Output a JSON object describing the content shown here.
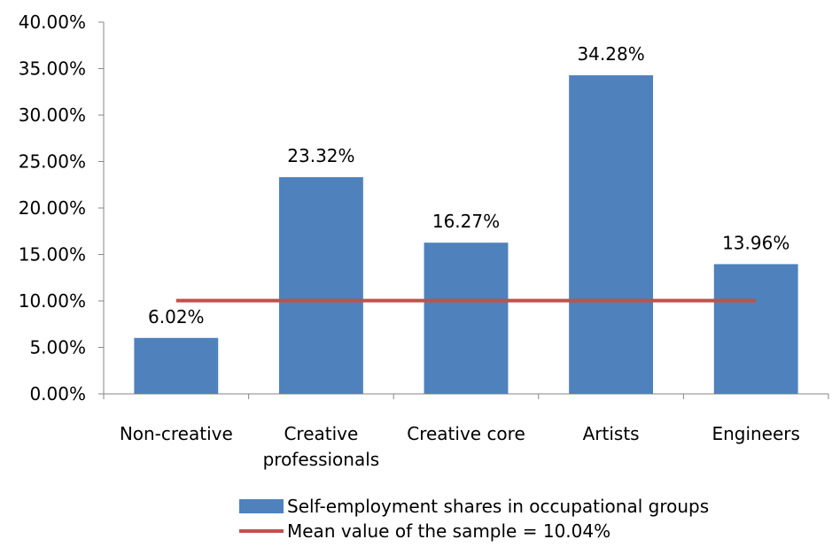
{
  "chart_data": {
    "type": "bar",
    "categories": [
      "Non-creative",
      "Creative professionals",
      "Creative core",
      "Artists",
      "Engineers"
    ],
    "category_lines": [
      [
        "Non-creative"
      ],
      [
        "Creative",
        "professionals"
      ],
      [
        "Creative core"
      ],
      [
        "Artists"
      ],
      [
        "Engineers"
      ]
    ],
    "series": [
      {
        "name": "Self-employment shares in occupational groups",
        "values": [
          6.02,
          23.32,
          16.27,
          34.28,
          13.96
        ],
        "data_labels": [
          "6.02%",
          "23.32%",
          "16.27%",
          "34.28%",
          "13.96%"
        ]
      },
      {
        "name": "Mean value of the sample = 10.04%",
        "type": "line",
        "values": [
          10.04,
          10.04,
          10.04,
          10.04,
          10.04
        ]
      }
    ],
    "ylim": [
      0,
      40
    ],
    "yticks": [
      0,
      5,
      10,
      15,
      20,
      25,
      30,
      35,
      40
    ],
    "ytick_labels": [
      "0.00%",
      "5.00%",
      "10.00%",
      "15.00%",
      "20.00%",
      "25.00%",
      "30.00%",
      "35.00%",
      "40.00%"
    ],
    "grid": false,
    "legend_position": "bottom",
    "colors": {
      "bar": "#4F81BD",
      "line": "#C0504D",
      "axis": "#868686"
    }
  },
  "legend": {
    "items": [
      {
        "label": "Self-employment shares in occupational groups",
        "kind": "bar"
      },
      {
        "label": "Mean value of the sample = 10.04%",
        "kind": "line"
      }
    ]
  }
}
